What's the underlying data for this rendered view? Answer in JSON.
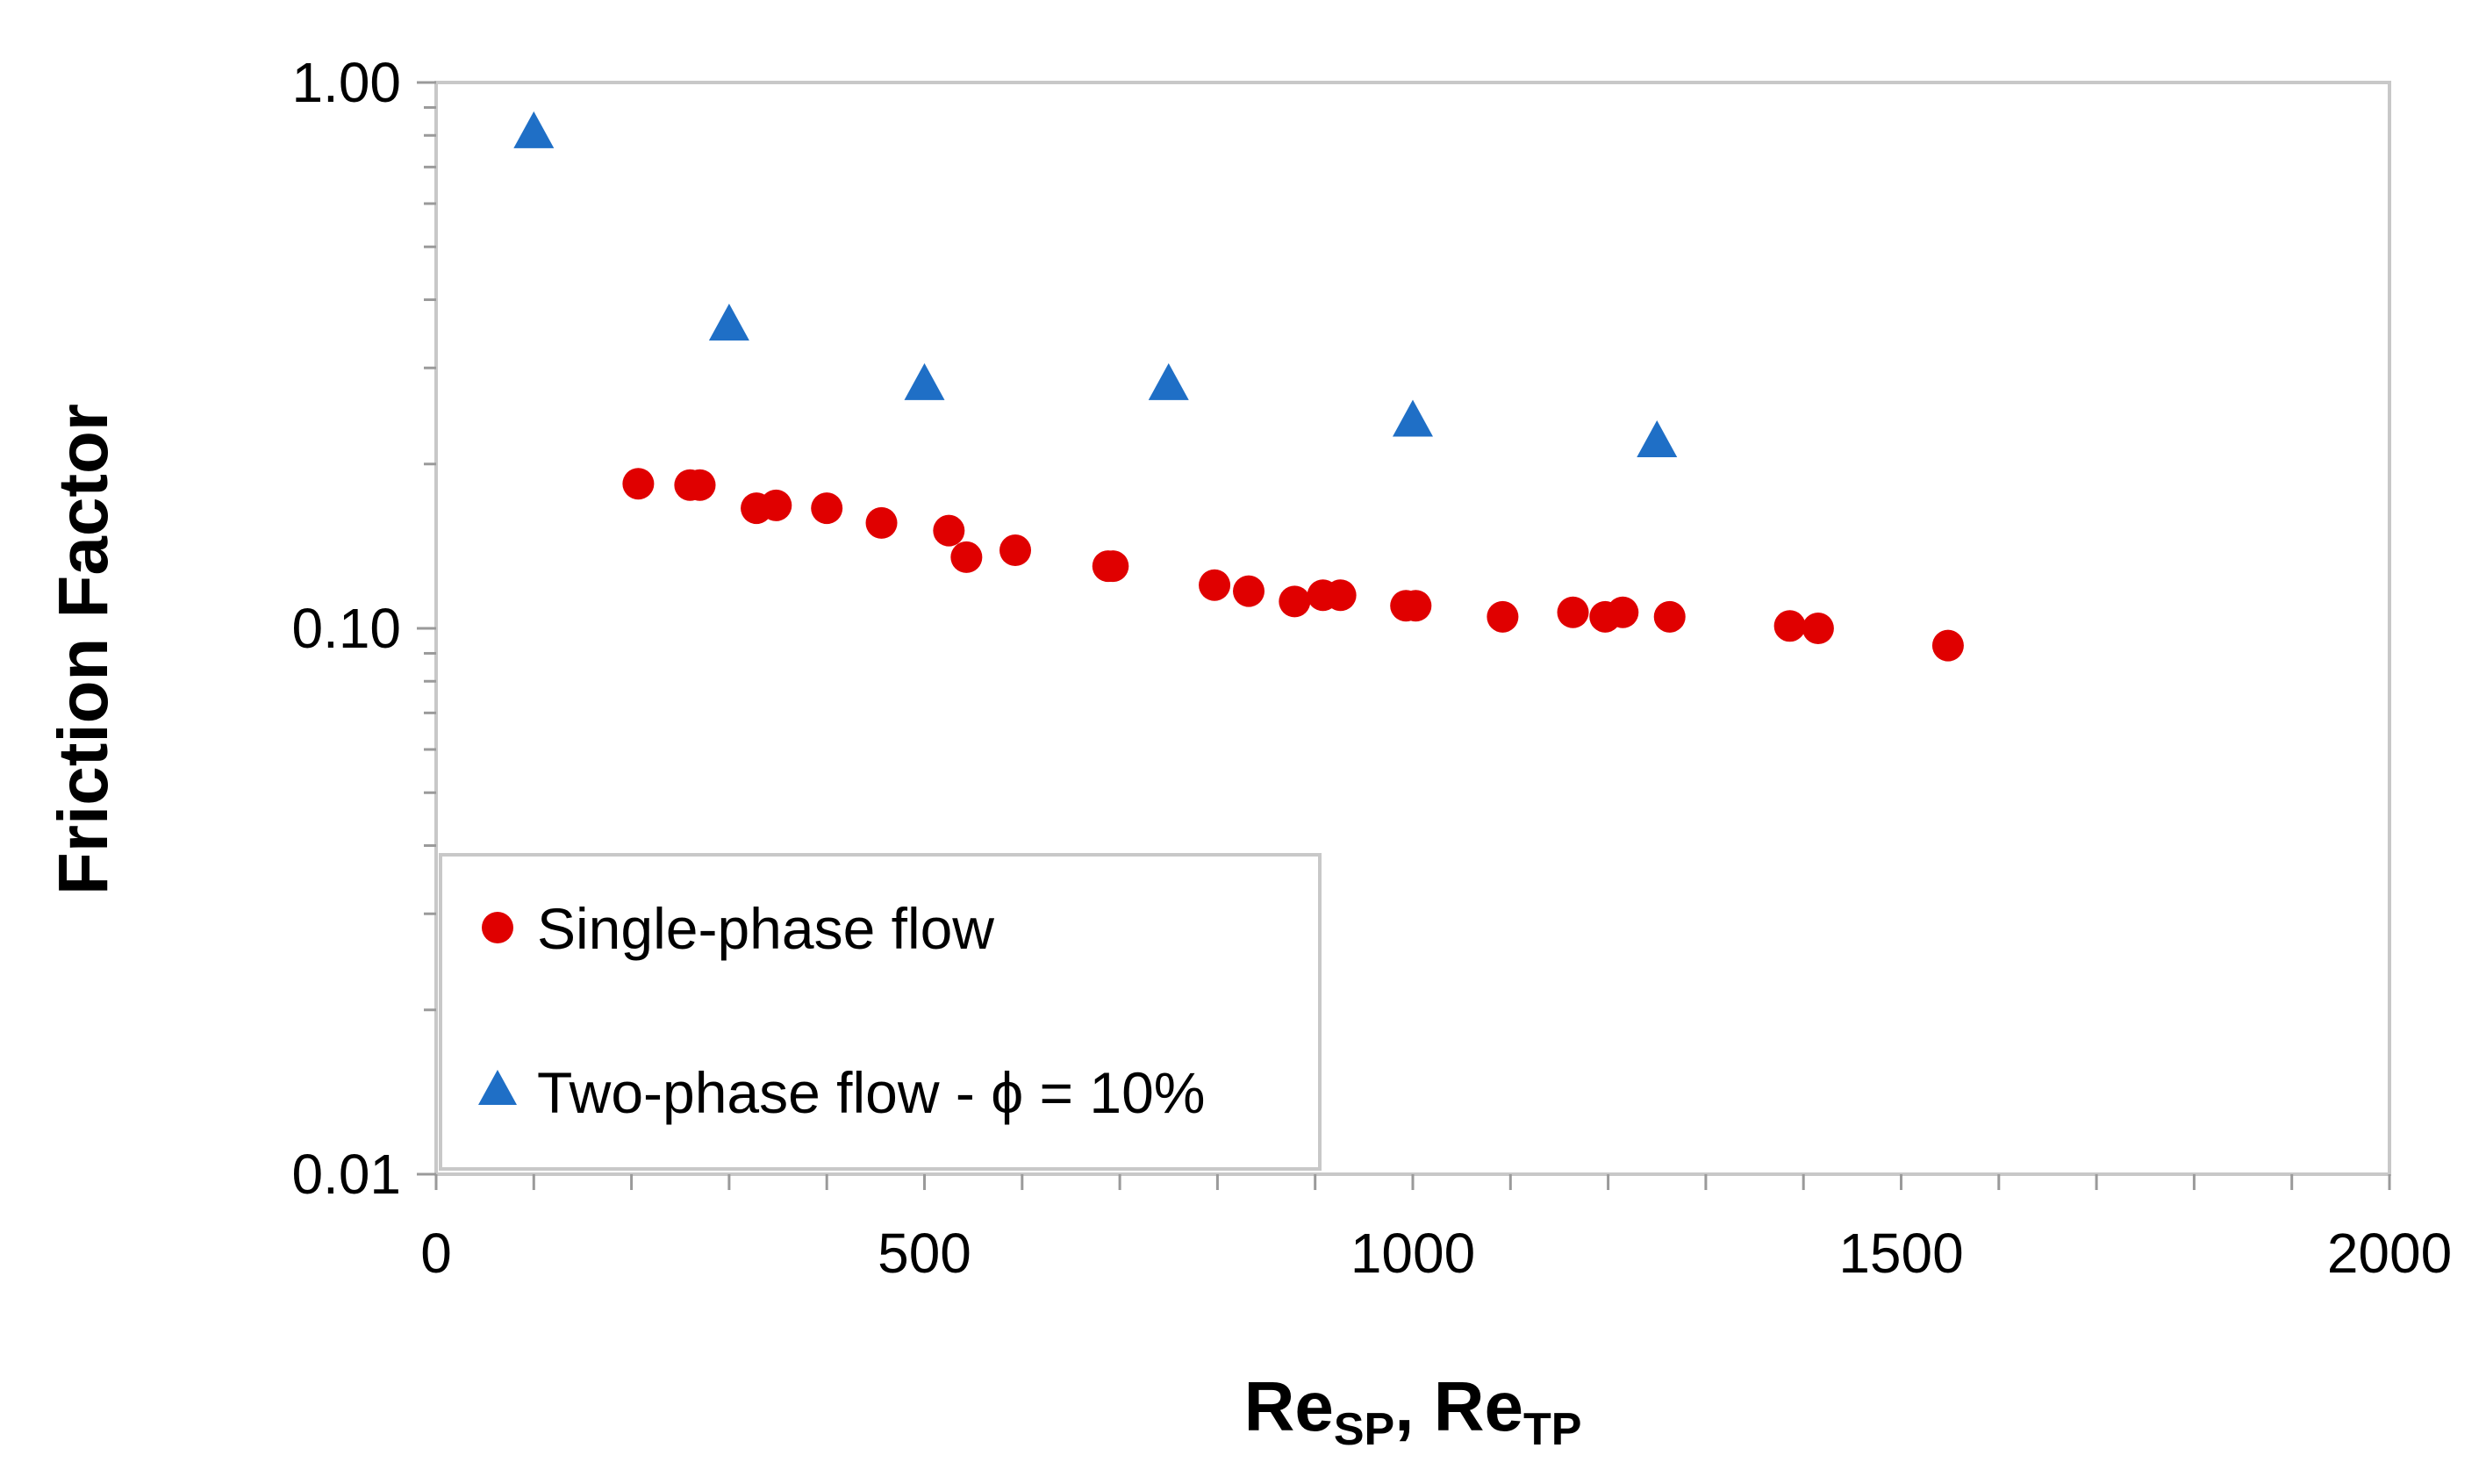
{
  "chart_data": {
    "type": "scatter",
    "xlabel": {
      "main": "Re",
      "sub1": "SP",
      "sep": ", ",
      "main2": "Re",
      "sub2": "TP"
    },
    "ylabel": "Friction Factor",
    "xlim": [
      0,
      2000
    ],
    "ylim": [
      0.01,
      1.0
    ],
    "yscale": "log",
    "x_ticks": [
      {
        "value": 0,
        "label": "0"
      },
      {
        "value": 500,
        "label": "500"
      },
      {
        "value": 1000,
        "label": "1000"
      },
      {
        "value": 1500,
        "label": "1500"
      },
      {
        "value": 2000,
        "label": "2000"
      }
    ],
    "y_ticks": [
      {
        "value": 0.01,
        "label": "0.01"
      },
      {
        "value": 0.1,
        "label": "0.10"
      },
      {
        "value": 1.0,
        "label": "1.00"
      }
    ],
    "legend_position": "bottom-left",
    "series": [
      {
        "name": "Single-phase flow",
        "marker": "circle",
        "color": "#e00000",
        "points": [
          {
            "x": 207,
            "y": 0.184
          },
          {
            "x": 260,
            "y": 0.183
          },
          {
            "x": 270,
            "y": 0.183
          },
          {
            "x": 328,
            "y": 0.166
          },
          {
            "x": 348,
            "y": 0.168
          },
          {
            "x": 400,
            "y": 0.166
          },
          {
            "x": 456,
            "y": 0.156
          },
          {
            "x": 525,
            "y": 0.151
          },
          {
            "x": 543,
            "y": 0.135
          },
          {
            "x": 593,
            "y": 0.139
          },
          {
            "x": 688,
            "y": 0.13
          },
          {
            "x": 693,
            "y": 0.13
          },
          {
            "x": 797,
            "y": 0.12
          },
          {
            "x": 832,
            "y": 0.117
          },
          {
            "x": 879,
            "y": 0.112
          },
          {
            "x": 908,
            "y": 0.115
          },
          {
            "x": 926,
            "y": 0.115
          },
          {
            "x": 993,
            "y": 0.11
          },
          {
            "x": 1003,
            "y": 0.11
          },
          {
            "x": 1092,
            "y": 0.105
          },
          {
            "x": 1164,
            "y": 0.107
          },
          {
            "x": 1197,
            "y": 0.105
          },
          {
            "x": 1215,
            "y": 0.107
          },
          {
            "x": 1263,
            "y": 0.105
          },
          {
            "x": 1386,
            "y": 0.101
          },
          {
            "x": 1415,
            "y": 0.1
          },
          {
            "x": 1548,
            "y": 0.093
          }
        ]
      },
      {
        "name": "Two-phase flow - ϕ = 10%",
        "marker": "triangle",
        "color": "#1f6fc6",
        "points": [
          {
            "x": 100,
            "y": 0.81
          },
          {
            "x": 300,
            "y": 0.36
          },
          {
            "x": 500,
            "y": 0.28
          },
          {
            "x": 750,
            "y": 0.28
          },
          {
            "x": 1000,
            "y": 0.24
          },
          {
            "x": 1250,
            "y": 0.22
          }
        ]
      }
    ]
  }
}
